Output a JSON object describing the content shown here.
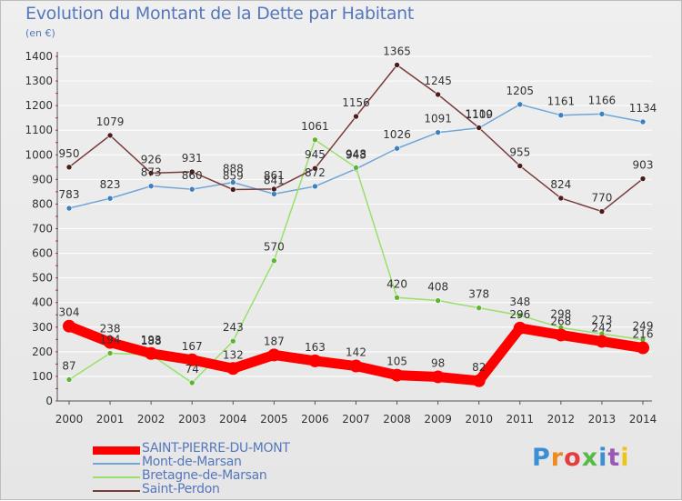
{
  "title": "Evolution du Montant de la Dette par Habitant",
  "unit": "(en €)",
  "logo": {
    "letters": [
      "P",
      "r",
      "o",
      "x",
      "i",
      "t",
      "i"
    ],
    "colors": [
      "#3b8fd4",
      "#f08a1c",
      "#e73c3c",
      "#58b947",
      "#3b8fd4",
      "#9b59b6",
      "#f0c419"
    ]
  },
  "chart_data": {
    "type": "line",
    "x": [
      2000,
      2001,
      2002,
      2003,
      2004,
      2005,
      2006,
      2007,
      2008,
      2009,
      2010,
      2011,
      2012,
      2013,
      2014
    ],
    "ylim": [
      0,
      1400
    ],
    "yticks": [
      0,
      100,
      200,
      300,
      400,
      500,
      600,
      700,
      800,
      900,
      1000,
      1100,
      1200,
      1300,
      1400
    ],
    "grid": true,
    "legend_position": "bottom-left",
    "series": [
      {
        "name": "SAINT-PIERRE-DU-MONT",
        "color": "#ff0000",
        "width": 11,
        "values": [
          304,
          238,
          193,
          167,
          132,
          187,
          163,
          142,
          105,
          98,
          82,
          296,
          268,
          242,
          216
        ]
      },
      {
        "name": "Mont-de-Marsan",
        "color": "#6fa5d8",
        "width": 1.5,
        "values": [
          783,
          823,
          873,
          860,
          888,
          841,
          872,
          943,
          1026,
          1091,
          1109,
          1205,
          1161,
          1166,
          1134
        ]
      },
      {
        "name": "Bretagne-de-Marsan",
        "color": "#98e06a",
        "width": 1.5,
        "values": [
          87,
          194,
          188,
          74,
          243,
          570,
          1061,
          948,
          420,
          408,
          378,
          348,
          298,
          273,
          249
        ]
      },
      {
        "name": "Saint-Perdon",
        "color": "#7a3a3a",
        "width": 1.5,
        "values": [
          950,
          1079,
          926,
          931,
          859,
          861,
          945,
          1156,
          1365,
          1245,
          1110,
          955,
          824,
          770,
          903
        ]
      }
    ]
  }
}
